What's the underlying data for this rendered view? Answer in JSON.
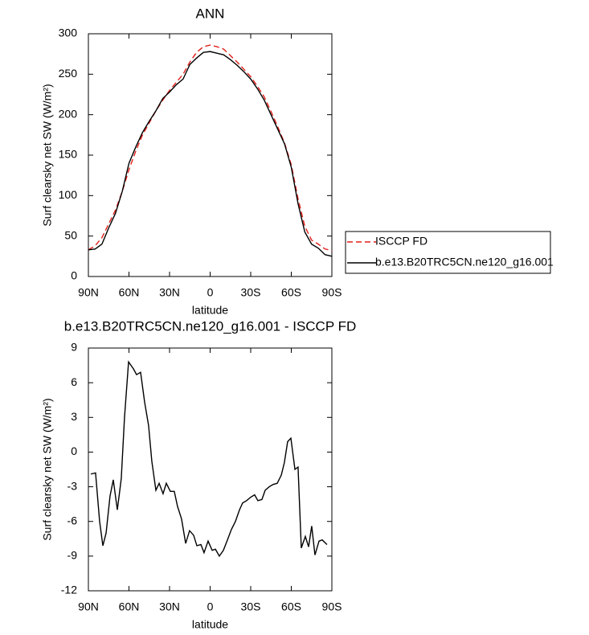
{
  "chart_data": [
    {
      "type": "line",
      "title": "ANN",
      "xlabel": "latitude",
      "ylabel": "Surf clearsky net SW (W/m²)",
      "x": [
        90,
        85,
        80,
        75,
        70,
        65,
        60,
        55,
        50,
        45,
        40,
        35,
        30,
        25,
        20,
        15,
        10,
        5,
        0,
        -5,
        -10,
        -15,
        -20,
        -25,
        -30,
        -35,
        -40,
        -45,
        -50,
        -55,
        -60,
        -65,
        -70,
        -75,
        -80,
        -85,
        -90
      ],
      "series": [
        {
          "name": "ISCCP FD",
          "color": "#e0201b",
          "linestyle": "dashed",
          "values": [
            33,
            38,
            48,
            65,
            82,
            105,
            132,
            155,
            175,
            190,
            205,
            218,
            230,
            240,
            250,
            265,
            277,
            284,
            286,
            284,
            281,
            273,
            265,
            256,
            247,
            235,
            222,
            204,
            185,
            165,
            138,
            96,
            62,
            45,
            40,
            34,
            32
          ]
        },
        {
          "name": "b.e13.B20TRC5CN.ne120_g16.001",
          "color": "#000000",
          "linestyle": "solid",
          "values": [
            33,
            34,
            40,
            60,
            78,
            105,
            140,
            160,
            178,
            192,
            205,
            220,
            228,
            237,
            244,
            262,
            270,
            277,
            278,
            276,
            274,
            268,
            261,
            253,
            244,
            232,
            218,
            200,
            182,
            164,
            135,
            90,
            55,
            40,
            35,
            27,
            25
          ]
        }
      ],
      "xlim": [
        90,
        -90
      ],
      "ylim": [
        0,
        300
      ],
      "xticks": [
        {
          "value": 90,
          "label": "90N"
        },
        {
          "value": 60,
          "label": "60N"
        },
        {
          "value": 30,
          "label": "30N"
        },
        0,
        {
          "value": -30,
          "label": "30S"
        },
        {
          "value": -60,
          "label": "60S"
        },
        {
          "value": -90,
          "label": "90S"
        }
      ],
      "yticks": [
        0,
        50,
        100,
        150,
        200,
        250,
        300
      ],
      "legend": "right"
    },
    {
      "type": "line",
      "title": "b.e13.B20TRC5CN.ne120_g16.001 - ISCCP FD",
      "xlabel": "latitude",
      "ylabel": "Surf clearsky net SW (W/m²)",
      "x": [
        88.2,
        84.7,
        81.7,
        79.3,
        76.9,
        74.0,
        71.6,
        68.6,
        65.7,
        63.3,
        60.3,
        56.7,
        54.4,
        51.4,
        48.4,
        45.5,
        43.1,
        40.1,
        37.7,
        34.8,
        32.4,
        29.4,
        26.5,
        24.1,
        21.1,
        18.1,
        15.2,
        12.2,
        9.8,
        6.8,
        4.5,
        1.5,
        -1.5,
        -3.9,
        -6.8,
        -9.8,
        -12.8,
        -15.7,
        -18.7,
        -21.7,
        -24.0,
        -27.0,
        -30.0,
        -32.9,
        -35.3,
        -38.3,
        -40.7,
        -43.7,
        -46.6,
        -49.6,
        -52.6,
        -54.9,
        -57.3,
        -59.7,
        -62.7,
        -65.0,
        -67.4,
        -70.4,
        -72.8,
        -75.1,
        -77.5,
        -80.5,
        -82.9,
        -86.4
      ],
      "series": [
        {
          "color": "#000000",
          "linestyle": "solid",
          "values": [
            -1.9,
            -1.8,
            -6,
            -8.1,
            -7,
            -3.8,
            -2.4,
            -5,
            -2.3,
            3,
            7.8,
            7.2,
            6.7,
            6.9,
            4.3,
            2.3,
            -0.8,
            -3.3,
            -2.7,
            -3.6,
            -2.7,
            -3.4,
            -3.4,
            -4.7,
            -5.8,
            -7.9,
            -6.8,
            -7.2,
            -8.1,
            -8,
            -8.7,
            -7.7,
            -8.5,
            -8.4,
            -9.0,
            -8.5,
            -7.6,
            -6.7,
            -6,
            -5,
            -4.4,
            -4.2,
            -3.9,
            -3.7,
            -4.2,
            -4.1,
            -3.3,
            -3,
            -2.8,
            -2.7,
            -2,
            -0.9,
            0.9,
            1.2,
            -1.5,
            -1.3,
            -8.3,
            -7.3,
            -8.2,
            -6.4,
            -8.9,
            -7.7,
            -7.6,
            -8.0
          ]
        }
      ],
      "xlim": [
        90,
        -90
      ],
      "ylim": [
        -12,
        9
      ],
      "xticks": [
        {
          "value": 90,
          "label": "90N"
        },
        {
          "value": 60,
          "label": "60N"
        },
        {
          "value": 30,
          "label": "30N"
        },
        0,
        {
          "value": -30,
          "label": "30S"
        },
        {
          "value": -60,
          "label": "60S"
        },
        {
          "value": -90,
          "label": "90S"
        }
      ],
      "yticks": [
        -12,
        -9,
        -6,
        -3,
        0,
        3,
        6,
        9
      ]
    }
  ]
}
